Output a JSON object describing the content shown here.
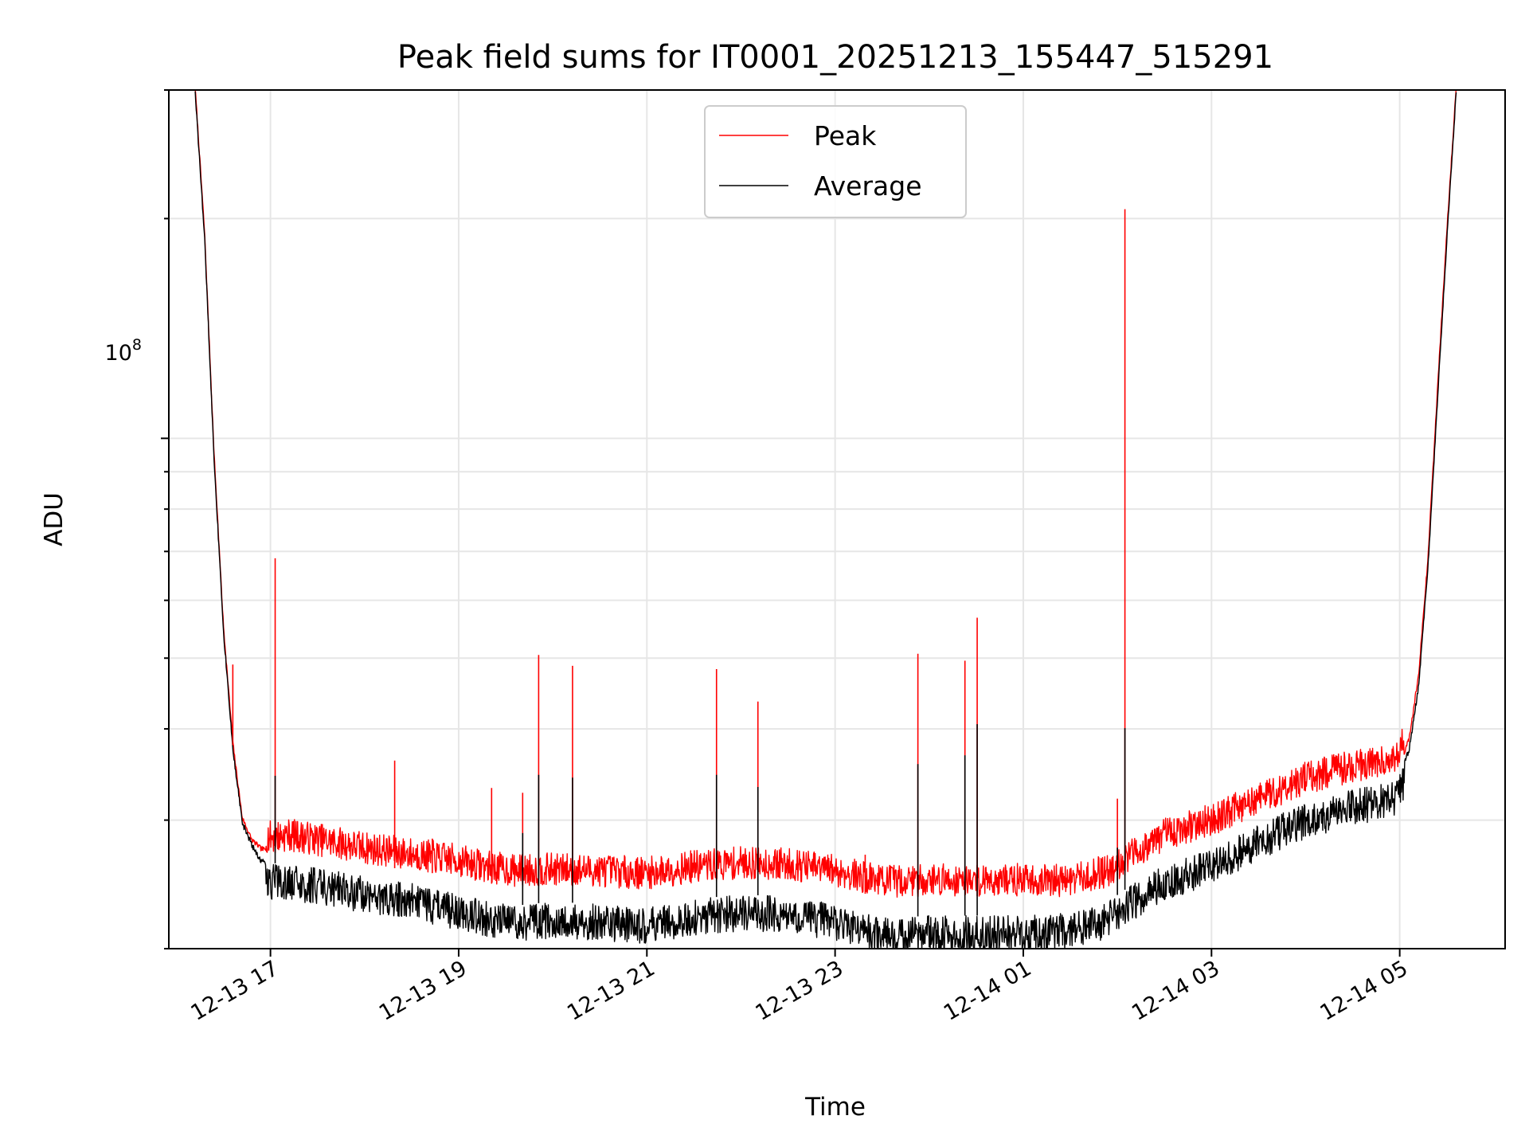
{
  "chart_data": {
    "type": "line",
    "title": "Peak field sums for IT0001_20251213_155447_515291",
    "xlabel": "Time",
    "ylabel": "ADU",
    "yscale": "log",
    "grid": true,
    "legend_position": "upper-center",
    "x_unit": "hours since 2025-12-13 00:00",
    "xlim": [
      15.92,
      30.12
    ],
    "ylim": [
      20000000,
      300000000
    ],
    "x_ticks": [
      17,
      19,
      21,
      23,
      25,
      27,
      29
    ],
    "x_tick_labels": [
      "12-13 17",
      "12-13 19",
      "12-13 21",
      "12-13 23",
      "12-14 01",
      "12-14 03",
      "12-14 05"
    ],
    "y_major_tick_value": 100000000,
    "y_major_tick_label_base": "10",
    "y_major_tick_label_exp": "8",
    "series": [
      {
        "name": "Peak",
        "color": "#ff0000",
        "x": [
          16.2,
          16.3,
          16.4,
          16.5,
          16.6,
          16.7,
          16.8,
          16.9,
          17.0,
          17.2,
          17.5,
          17.8,
          18.0,
          18.5,
          19.0,
          19.3,
          19.6,
          20.0,
          20.5,
          21.0,
          21.5,
          22.0,
          22.5,
          23.0,
          23.3,
          23.6,
          24.0,
          24.5,
          25.0,
          25.3,
          25.6,
          25.9,
          26.2,
          26.5,
          27.0,
          27.5,
          28.0,
          28.5,
          28.9,
          29.0,
          29.1,
          29.2,
          29.3,
          29.4,
          29.5,
          29.6
        ],
        "values": [
          300000000,
          190000000,
          95000000,
          55000000,
          38000000,
          30000000,
          28000000,
          27200000,
          27000000,
          27200000,
          26800000,
          26400000,
          26100000,
          25600000,
          25100000,
          24600000,
          24300000,
          24400000,
          24300000,
          24100000,
          24600000,
          24900000,
          24800000,
          24300000,
          23800000,
          23500000,
          23600000,
          23600000,
          23600000,
          23500000,
          23700000,
          24300000,
          25800000,
          27200000,
          28500000,
          30500000,
          32500000,
          33800000,
          34500000,
          35400000,
          38500000,
          47000000,
          68000000,
          115000000,
          190000000,
          300000000
        ],
        "spikes": [
          {
            "x": 17.05,
            "value": 68500000
          },
          {
            "x": 16.6,
            "value": 49000000
          },
          {
            "x": 18.32,
            "value": 36200000
          },
          {
            "x": 18.72,
            "value": 28300000
          },
          {
            "x": 19.35,
            "value": 33200000
          },
          {
            "x": 19.68,
            "value": 32700000
          },
          {
            "x": 19.85,
            "value": 50500000
          },
          {
            "x": 20.21,
            "value": 48800000
          },
          {
            "x": 21.74,
            "value": 48300000
          },
          {
            "x": 22.18,
            "value": 43600000
          },
          {
            "x": 23.32,
            "value": 26900000
          },
          {
            "x": 23.88,
            "value": 50700000
          },
          {
            "x": 24.38,
            "value": 49600000
          },
          {
            "x": 24.51,
            "value": 56800000
          },
          {
            "x": 26.0,
            "value": 32100000
          },
          {
            "x": 26.08,
            "value": 206000000
          }
        ]
      },
      {
        "name": "Average",
        "color": "#000000",
        "x": [
          16.2,
          16.3,
          16.4,
          16.5,
          16.6,
          16.7,
          16.8,
          16.9,
          17.0,
          17.2,
          17.5,
          17.8,
          18.0,
          18.5,
          19.0,
          19.3,
          19.6,
          20.0,
          20.5,
          21.0,
          21.5,
          22.0,
          22.5,
          23.0,
          23.3,
          23.6,
          24.0,
          24.5,
          25.0,
          25.3,
          25.6,
          25.9,
          26.2,
          26.5,
          27.0,
          27.5,
          28.0,
          28.5,
          28.9,
          29.0,
          29.1,
          29.2,
          29.3,
          29.4,
          29.5,
          29.6
        ],
        "values": [
          300000000,
          190000000,
          95000000,
          55000000,
          38000000,
          30000000,
          28000000,
          26600000,
          26200000,
          26100000,
          25800000,
          25400000,
          25100000,
          24600000,
          23800000,
          23200000,
          22900000,
          23200000,
          23000000,
          22800000,
          23400000,
          23700000,
          23600000,
          23000000,
          22400000,
          22000000,
          22200000,
          22200000,
          22200000,
          22300000,
          22500000,
          23200000,
          24700000,
          26000000,
          27500000,
          29600000,
          31700000,
          33100000,
          33800000,
          34700000,
          37800000,
          46000000,
          67000000,
          113000000,
          188000000,
          300000000
        ],
        "spikes": [
          {
            "x": 17.05,
            "value": 34500000
          },
          {
            "x": 19.68,
            "value": 28800000
          },
          {
            "x": 19.85,
            "value": 34600000
          },
          {
            "x": 20.21,
            "value": 34300000
          },
          {
            "x": 21.74,
            "value": 34600000
          },
          {
            "x": 22.18,
            "value": 33300000
          },
          {
            "x": 23.88,
            "value": 35800000
          },
          {
            "x": 24.38,
            "value": 36800000
          },
          {
            "x": 24.51,
            "value": 40600000
          },
          {
            "x": 26.0,
            "value": 27500000
          },
          {
            "x": 26.08,
            "value": 40100000
          }
        ]
      }
    ]
  }
}
